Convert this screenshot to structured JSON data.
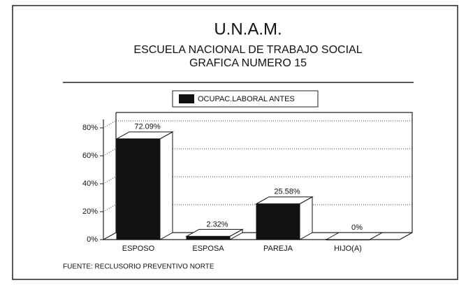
{
  "chart_data": {
    "type": "bar",
    "title": "U.N.A.M.",
    "subtitle": [
      "ESCUELA NACIONAL DE TRABAJO SOCIAL",
      "GRAFICA NUMERO 15"
    ],
    "categories": [
      "ESPOSO",
      "ESPOSA",
      "PAREJA",
      "HIJO(A)"
    ],
    "series": [
      {
        "name": "OCUPAC.LABORAL ANTES",
        "color": "#111111",
        "values": [
          72.09,
          2.32,
          25.58,
          0
        ],
        "value_labels": [
          "72.09%",
          "2.32%",
          "25.58%",
          "0%"
        ]
      }
    ],
    "ylim": [
      0,
      86
    ],
    "yticks": [
      {
        "value": 0,
        "label": "0%"
      },
      {
        "value": 20,
        "label": "20%"
      },
      {
        "value": 40,
        "label": "40%"
      },
      {
        "value": 60,
        "label": "60%"
      },
      {
        "value": 80,
        "label": "80%"
      }
    ],
    "grid": true,
    "legend": "top",
    "source": "FUENTE: RECLUSORIO PREVENTIVO NORTE"
  }
}
